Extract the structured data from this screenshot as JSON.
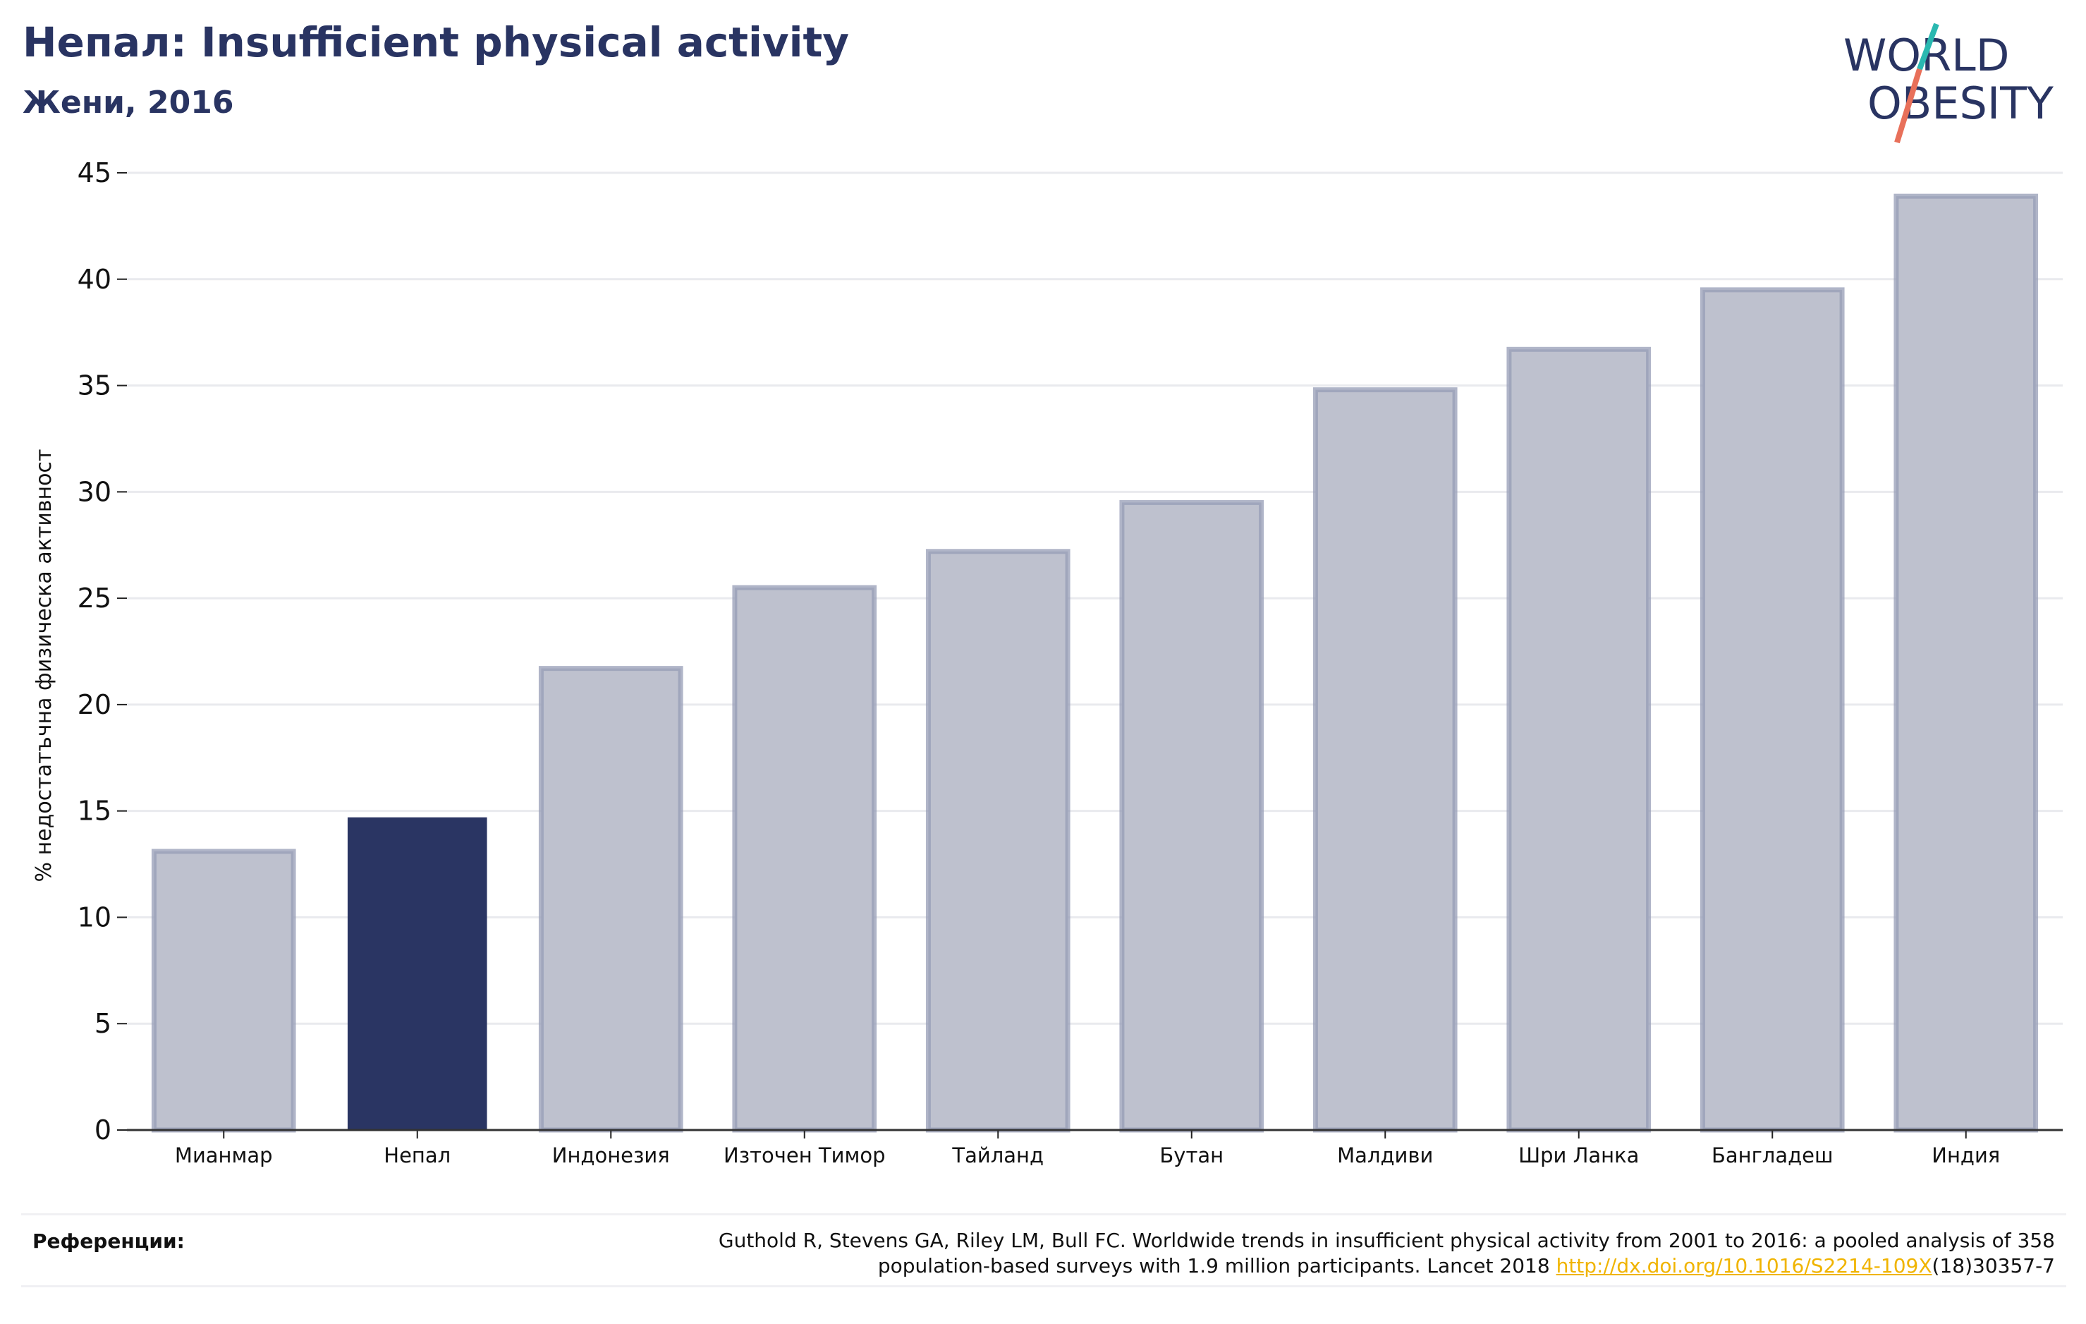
{
  "title": "Непал: Insufficient physical activity",
  "subtitle": "Жени, 2016",
  "logo": {
    "line1": "WORLD",
    "line2": "OBESITY"
  },
  "colors": {
    "accent": "#293462",
    "bar_default": "#bec1ce",
    "bar_border": "#969cb5",
    "bar_highlight": "#2a3563",
    "link": "#f0b400",
    "logo_teal": "#2ab8b0",
    "logo_coral": "#e8705a"
  },
  "chart_data": {
    "type": "bar",
    "categories": [
      "Мианмар",
      "Непал",
      "Индонезия",
      "Източен Тимор",
      "Тайланд",
      "Бутан",
      "Малдиви",
      "Шри Ланка",
      "Бангладеш",
      "Индия"
    ],
    "values": [
      13.1,
      14.7,
      21.7,
      25.5,
      27.2,
      29.5,
      34.8,
      36.7,
      39.5,
      43.9
    ],
    "highlight": "Непал",
    "title": "Непал: Insufficient physical activity",
    "subtitle": "Жени, 2016",
    "xlabel": "",
    "ylabel": "% недостатъчна физическа активност",
    "ylim": [
      0,
      45
    ],
    "yticks": [
      0,
      5,
      10,
      15,
      20,
      25,
      30,
      35,
      40,
      45
    ],
    "grid": true
  },
  "references": {
    "label": "Референции:",
    "line1": "Guthold R, Stevens GA, Riley LM, Bull FC. Worldwide trends in insufficient physical activity from 2001 to 2016: a pooled analysis of 358",
    "line2_before": "population-based surveys with 1.9 million participants. Lancet 2018 ",
    "link_text": "http://dx.doi.org/10.1016/S2214-109X",
    "line2_after": "(18)30357-7"
  }
}
